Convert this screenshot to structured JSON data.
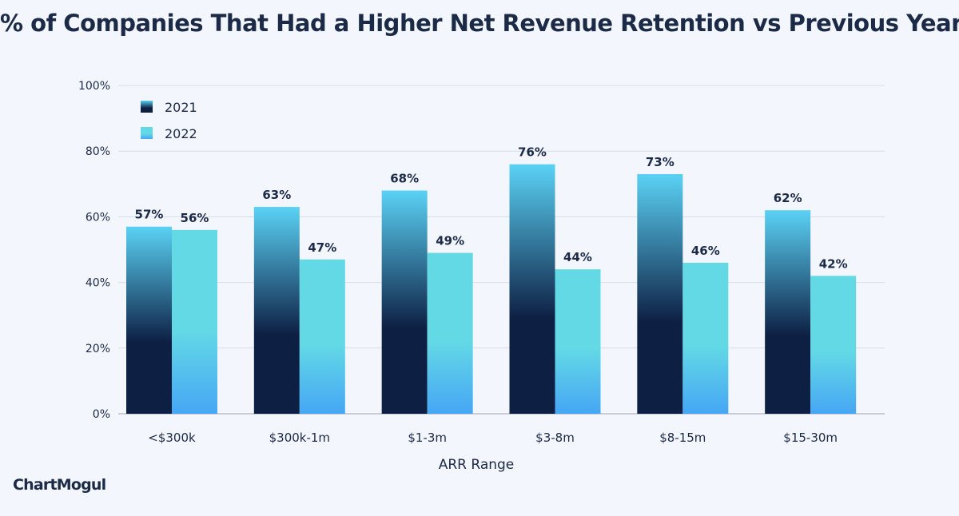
{
  "page": {
    "brand": "ChartMogul"
  },
  "chart_data": {
    "type": "bar",
    "title": "% of Companies That Had a Higher Net Revenue Retention vs Previous Year",
    "xlabel": "ARR Range",
    "ylabel": "",
    "categories": [
      "<$300k",
      "$300k-1m",
      "$1-3m",
      "$3-8m",
      "$8-15m",
      "$15-30m"
    ],
    "series": [
      {
        "name": "2021",
        "values": [
          57,
          63,
          68,
          76,
          73,
          62
        ],
        "labels": [
          "57%",
          "63%",
          "68%",
          "76%",
          "73%",
          "62%"
        ],
        "color_top": "#5ad2f5",
        "color_bottom": "#0d1f43"
      },
      {
        "name": "2022",
        "values": [
          56,
          47,
          49,
          44,
          46,
          42
        ],
        "labels": [
          "56%",
          "47%",
          "49%",
          "44%",
          "46%",
          "42%"
        ],
        "color_top": "#63d9e6",
        "color_bottom": "#46a6f4"
      }
    ],
    "ylim": [
      0,
      100
    ],
    "y_ticks": [
      0,
      20,
      40,
      60,
      80,
      100
    ],
    "y_tick_labels": [
      "0%",
      "20%",
      "40%",
      "60%",
      "80%",
      "100%"
    ],
    "grid": true,
    "legend_position": "top-left"
  }
}
